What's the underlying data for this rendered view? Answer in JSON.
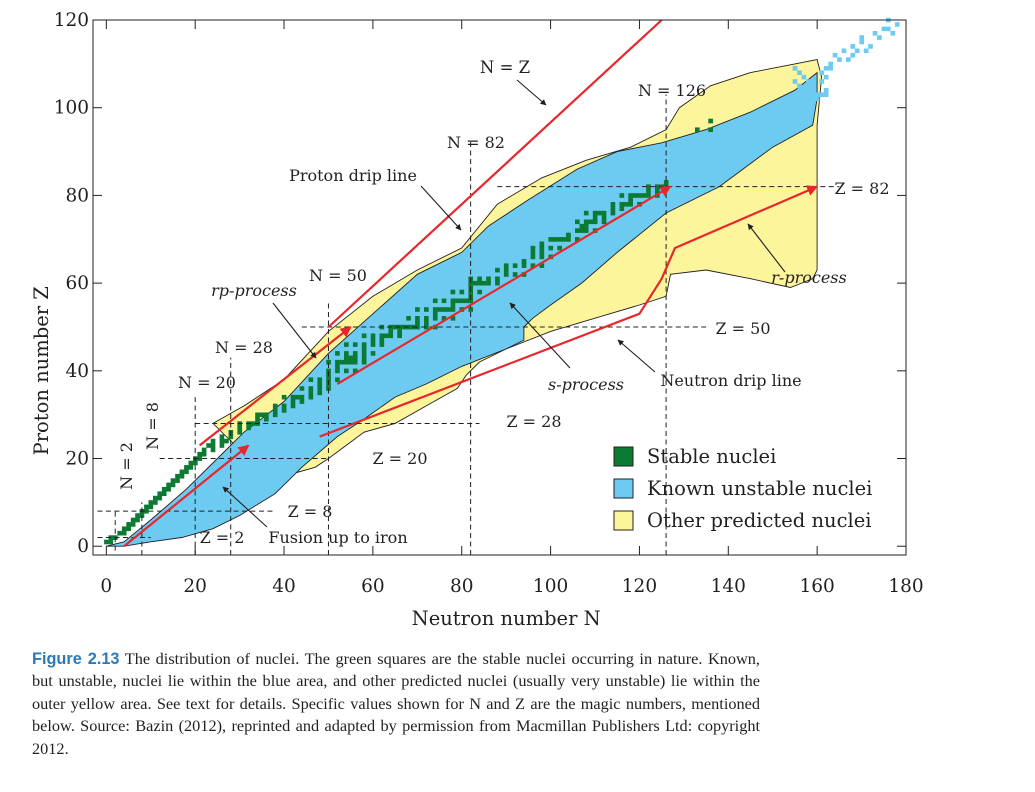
{
  "chart_data": {
    "type": "heatmap",
    "xlabel": "Neutron number N",
    "ylabel": "Proton number Z",
    "xlim": [
      -3,
      180
    ],
    "ylim": [
      -2,
      120
    ],
    "x_ticks": [
      "0",
      "20",
      "40",
      "60",
      "80",
      "100",
      "120",
      "140",
      "160",
      "180"
    ],
    "y_ticks": [
      "0",
      "20",
      "40",
      "60",
      "80",
      "100",
      "120"
    ],
    "grid": false,
    "legend_placement": "bottom-right",
    "legend": [
      "Stable nuclei",
      "Known unstable nuclei",
      "Other predicted nuclei"
    ],
    "colors": {
      "stable": "#0b7a32",
      "known": "#6dcbf2",
      "predicted": "#fdf59c",
      "arrow": "#e8262b"
    },
    "known_unstable_region": [
      [
        0,
        0
      ],
      [
        4,
        1
      ],
      [
        10,
        6
      ],
      [
        18,
        13
      ],
      [
        25,
        20
      ],
      [
        31,
        26
      ],
      [
        40,
        33
      ],
      [
        50,
        44
      ],
      [
        60,
        53
      ],
      [
        70,
        62
      ],
      [
        80,
        67
      ],
      [
        86,
        73
      ],
      [
        95,
        79
      ],
      [
        106,
        86
      ],
      [
        115,
        90
      ],
      [
        125,
        92
      ],
      [
        135,
        95
      ],
      [
        145,
        99
      ],
      [
        155,
        104
      ],
      [
        160,
        108
      ],
      [
        160,
        102
      ],
      [
        159,
        96
      ],
      [
        150,
        91
      ],
      [
        138,
        82
      ],
      [
        126,
        76
      ],
      [
        115,
        67
      ],
      [
        107,
        60
      ],
      [
        100,
        55
      ],
      [
        96,
        52
      ],
      [
        94,
        50
      ],
      [
        94,
        47
      ],
      [
        90,
        45
      ],
      [
        80,
        41
      ],
      [
        72,
        37
      ],
      [
        65,
        34
      ],
      [
        58,
        29
      ],
      [
        52,
        25
      ],
      [
        44,
        18
      ],
      [
        38,
        12
      ],
      [
        30,
        7
      ],
      [
        24,
        4
      ],
      [
        17,
        2
      ],
      [
        10,
        1
      ],
      [
        4,
        0
      ]
    ],
    "predicted_region": [
      [
        24,
        28
      ],
      [
        31,
        32
      ],
      [
        40,
        38
      ],
      [
        50,
        49
      ],
      [
        60,
        57
      ],
      [
        70,
        63
      ],
      [
        80,
        68
      ],
      [
        88,
        78
      ],
      [
        98,
        84
      ],
      [
        108,
        88
      ],
      [
        118,
        91
      ],
      [
        126,
        95
      ],
      [
        129,
        100
      ],
      [
        136,
        105
      ],
      [
        145,
        108
      ],
      [
        155,
        110
      ],
      [
        160,
        111
      ],
      [
        161,
        107
      ],
      [
        160,
        96
      ],
      [
        160,
        80
      ],
      [
        160,
        63
      ],
      [
        159,
        61
      ],
      [
        154,
        59
      ],
      [
        145,
        61
      ],
      [
        135,
        63
      ],
      [
        127,
        62
      ],
      [
        126,
        57
      ],
      [
        120,
        55
      ],
      [
        110,
        52
      ],
      [
        100,
        49
      ],
      [
        90,
        45
      ],
      [
        84,
        42
      ],
      [
        81,
        39
      ],
      [
        79,
        36
      ],
      [
        72,
        32
      ],
      [
        65,
        28
      ],
      [
        58,
        26
      ],
      [
        54,
        23
      ],
      [
        50,
        20
      ],
      [
        47,
        18
      ],
      [
        40,
        16
      ],
      [
        34,
        18
      ],
      [
        30,
        22
      ]
    ],
    "stable_nuclei": [
      [
        0,
        1
      ],
      [
        1,
        1
      ],
      [
        1,
        2
      ],
      [
        2,
        2
      ],
      [
        3,
        3
      ],
      [
        4,
        3
      ],
      [
        4,
        4
      ],
      [
        5,
        4
      ],
      [
        5,
        5
      ],
      [
        6,
        5
      ],
      [
        6,
        6
      ],
      [
        7,
        6
      ],
      [
        7,
        7
      ],
      [
        8,
        7
      ],
      [
        8,
        8
      ],
      [
        9,
        8
      ],
      [
        9,
        9
      ],
      [
        10,
        9
      ],
      [
        10,
        10
      ],
      [
        11,
        10
      ],
      [
        11,
        11
      ],
      [
        12,
        11
      ],
      [
        12,
        12
      ],
      [
        13,
        12
      ],
      [
        13,
        13
      ],
      [
        14,
        13
      ],
      [
        14,
        14
      ],
      [
        15,
        14
      ],
      [
        15,
        15
      ],
      [
        16,
        15
      ],
      [
        16,
        16
      ],
      [
        17,
        16
      ],
      [
        17,
        17
      ],
      [
        18,
        17
      ],
      [
        18,
        18
      ],
      [
        19,
        18
      ],
      [
        19,
        19
      ],
      [
        20,
        19
      ],
      [
        20,
        20
      ],
      [
        21,
        20
      ],
      [
        21,
        21
      ],
      [
        22,
        21
      ],
      [
        22,
        22
      ],
      [
        24,
        22
      ],
      [
        23,
        23
      ],
      [
        24,
        23
      ],
      [
        26,
        23
      ],
      [
        24,
        24
      ],
      [
        26,
        24
      ],
      [
        27,
        24
      ],
      [
        26,
        25
      ],
      [
        28,
        25
      ],
      [
        28,
        26
      ],
      [
        30,
        26
      ],
      [
        30,
        27
      ],
      [
        32,
        27
      ],
      [
        30,
        28
      ],
      [
        32,
        28
      ],
      [
        33,
        28
      ],
      [
        34,
        28
      ],
      [
        34,
        29
      ],
      [
        36,
        29
      ],
      [
        34,
        30
      ],
      [
        35,
        30
      ],
      [
        36,
        30
      ],
      [
        38,
        30
      ],
      [
        38,
        31
      ],
      [
        40,
        31
      ],
      [
        38,
        32
      ],
      [
        40,
        32
      ],
      [
        42,
        32
      ],
      [
        42,
        33
      ],
      [
        44,
        33
      ],
      [
        40,
        34
      ],
      [
        42,
        34
      ],
      [
        43,
        34
      ],
      [
        44,
        34
      ],
      [
        46,
        34
      ],
      [
        46,
        35
      ],
      [
        48,
        35
      ],
      [
        44,
        36
      ],
      [
        46,
        36
      ],
      [
        48,
        36
      ],
      [
        50,
        36
      ],
      [
        48,
        37
      ],
      [
        50,
        37
      ],
      [
        46,
        38
      ],
      [
        48,
        38
      ],
      [
        50,
        38
      ],
      [
        52,
        38
      ],
      [
        50,
        39
      ],
      [
        50,
        40
      ],
      [
        52,
        40
      ],
      [
        54,
        40
      ],
      [
        56,
        40
      ],
      [
        52,
        41
      ],
      [
        50,
        42
      ],
      [
        52,
        42
      ],
      [
        53,
        42
      ],
      [
        54,
        42
      ],
      [
        55,
        42
      ],
      [
        56,
        42
      ],
      [
        58,
        42
      ],
      [
        54,
        43
      ],
      [
        55,
        43
      ],
      [
        56,
        43
      ],
      [
        58,
        43
      ],
      [
        52,
        44
      ],
      [
        54,
        44
      ],
      [
        56,
        44
      ],
      [
        58,
        44
      ],
      [
        60,
        44
      ],
      [
        58,
        45
      ],
      [
        54,
        46
      ],
      [
        56,
        46
      ],
      [
        58,
        46
      ],
      [
        60,
        46
      ],
      [
        62,
        46
      ],
      [
        60,
        47
      ],
      [
        62,
        47
      ],
      [
        58,
        48
      ],
      [
        60,
        48
      ],
      [
        62,
        48
      ],
      [
        63,
        48
      ],
      [
        64,
        48
      ],
      [
        66,
        48
      ],
      [
        64,
        49
      ],
      [
        66,
        49
      ],
      [
        62,
        50
      ],
      [
        64,
        50
      ],
      [
        65,
        50
      ],
      [
        66,
        50
      ],
      [
        67,
        50
      ],
      [
        68,
        50
      ],
      [
        69,
        50
      ],
      [
        70,
        50
      ],
      [
        72,
        50
      ],
      [
        74,
        50
      ],
      [
        70,
        51
      ],
      [
        72,
        51
      ],
      [
        68,
        52
      ],
      [
        70,
        52
      ],
      [
        72,
        52
      ],
      [
        74,
        52
      ],
      [
        76,
        52
      ],
      [
        78,
        52
      ],
      [
        74,
        53
      ],
      [
        70,
        54
      ],
      [
        72,
        54
      ],
      [
        74,
        54
      ],
      [
        75,
        54
      ],
      [
        76,
        54
      ],
      [
        77,
        54
      ],
      [
        78,
        54
      ],
      [
        80,
        54
      ],
      [
        82,
        54
      ],
      [
        78,
        55
      ],
      [
        74,
        56
      ],
      [
        76,
        56
      ],
      [
        78,
        56
      ],
      [
        79,
        56
      ],
      [
        80,
        56
      ],
      [
        81,
        56
      ],
      [
        82,
        56
      ],
      [
        82,
        57
      ],
      [
        78,
        58
      ],
      [
        80,
        58
      ],
      [
        82,
        58
      ],
      [
        84,
        58
      ],
      [
        82,
        59
      ],
      [
        82,
        60
      ],
      [
        83,
        60
      ],
      [
        84,
        60
      ],
      [
        85,
        60
      ],
      [
        86,
        60
      ],
      [
        88,
        60
      ],
      [
        82,
        61
      ],
      [
        84,
        61
      ],
      [
        86,
        61
      ],
      [
        88,
        61
      ],
      [
        90,
        62
      ],
      [
        92,
        62
      ],
      [
        94,
        62
      ],
      [
        88,
        63
      ],
      [
        90,
        63
      ],
      [
        90,
        64
      ],
      [
        92,
        64
      ],
      [
        94,
        64
      ],
      [
        96,
        64
      ],
      [
        98,
        64
      ],
      [
        94,
        65
      ],
      [
        96,
        66
      ],
      [
        98,
        66
      ],
      [
        100,
        66
      ],
      [
        96,
        67
      ],
      [
        98,
        67
      ],
      [
        96,
        68
      ],
      [
        98,
        68
      ],
      [
        100,
        68
      ],
      [
        102,
        68
      ],
      [
        98,
        69
      ],
      [
        100,
        70
      ],
      [
        101,
        70
      ],
      [
        102,
        70
      ],
      [
        103,
        70
      ],
      [
        104,
        70
      ],
      [
        106,
        70
      ],
      [
        104,
        71
      ],
      [
        106,
        72
      ],
      [
        107,
        72
      ],
      [
        108,
        72
      ],
      [
        110,
        72
      ],
      [
        107,
        73
      ],
      [
        108,
        73
      ],
      [
        106,
        74
      ],
      [
        108,
        74
      ],
      [
        109,
        74
      ],
      [
        110,
        74
      ],
      [
        112,
        74
      ],
      [
        110,
        75
      ],
      [
        112,
        75
      ],
      [
        108,
        76
      ],
      [
        110,
        76
      ],
      [
        111,
        76
      ],
      [
        112,
        76
      ],
      [
        114,
        76
      ],
      [
        114,
        77
      ],
      [
        116,
        77
      ],
      [
        114,
        78
      ],
      [
        116,
        78
      ],
      [
        117,
        78
      ],
      [
        118,
        78
      ],
      [
        120,
        78
      ],
      [
        118,
        79
      ],
      [
        116,
        80
      ],
      [
        118,
        80
      ],
      [
        119,
        80
      ],
      [
        120,
        80
      ],
      [
        121,
        80
      ],
      [
        122,
        80
      ],
      [
        124,
        80
      ],
      [
        122,
        81
      ],
      [
        124,
        81
      ],
      [
        122,
        82
      ],
      [
        124,
        82
      ],
      [
        125,
        82
      ],
      [
        126,
        82
      ],
      [
        126,
        83
      ],
      [
        133,
        95
      ],
      [
        136,
        95
      ],
      [
        136,
        97
      ]
    ],
    "known_heavy_fringe": [
      [
        159,
        105
      ],
      [
        159,
        104
      ],
      [
        158,
        106
      ],
      [
        158,
        103
      ],
      [
        157,
        107
      ],
      [
        157,
        104
      ],
      [
        156,
        108
      ],
      [
        156,
        105
      ],
      [
        155,
        109
      ],
      [
        155,
        106
      ],
      [
        161,
        106
      ],
      [
        162,
        107
      ],
      [
        161,
        108
      ],
      [
        162,
        109
      ],
      [
        163,
        110
      ],
      [
        165,
        111
      ],
      [
        164,
        112
      ],
      [
        163,
        109
      ],
      [
        166,
        113
      ],
      [
        167,
        111
      ],
      [
        168,
        112
      ],
      [
        169,
        113
      ],
      [
        168,
        114
      ],
      [
        170,
        115
      ],
      [
        171,
        113
      ],
      [
        170,
        116
      ],
      [
        172,
        114
      ],
      [
        174,
        116
      ],
      [
        173,
        117
      ],
      [
        175,
        118
      ],
      [
        176,
        118
      ],
      [
        177,
        117
      ],
      [
        176,
        120
      ],
      [
        178,
        119
      ],
      [
        160,
        102
      ],
      [
        160,
        103
      ],
      [
        161,
        103
      ],
      [
        162,
        104
      ],
      [
        162,
        103
      ]
    ],
    "magic_lines_N": [
      2,
      8,
      20,
      28,
      50,
      82,
      126
    ],
    "magic_lines_Z": [
      2,
      8,
      20,
      28,
      50,
      82
    ],
    "lines": [
      {
        "name": "N = Z",
        "points": [
          [
            50,
            50
          ],
          [
            125,
            120
          ]
        ]
      },
      {
        "name": "Fusion up to iron",
        "points": [
          [
            4,
            0
          ],
          [
            32,
            23
          ]
        ]
      },
      {
        "name": "rp-process",
        "points": [
          [
            21,
            23
          ],
          [
            55,
            50
          ]
        ]
      },
      {
        "name": "s-process",
        "points": [
          [
            52,
            37
          ],
          [
            127,
            82
          ]
        ]
      },
      {
        "name": "r-process",
        "points": [
          [
            48,
            25
          ],
          [
            120,
            53
          ],
          [
            125,
            61
          ],
          [
            128,
            68
          ],
          [
            160,
            82
          ]
        ]
      }
    ],
    "annotations": [
      "N = Z",
      "N = 126",
      "N = 82",
      "Proton drip line",
      "N = 50",
      "rp-process",
      "N = 28",
      "N = 20",
      "N = 8",
      "N = 2",
      "Z = 82",
      "r-process",
      "Z = 50",
      "Neutron drip line",
      "s-process",
      "Z = 28",
      "Z = 20",
      "Z = 8",
      "Z = 2",
      "Fusion up to iron"
    ]
  },
  "caption": {
    "label": "Figure 2.13",
    "text": "The distribution of nuclei. The green squares are the stable nuclei occurring in nature. Known, but unstable, nuclei lie within the blue area, and other predicted nuclei (usually very unstable) lie within the outer yellow area. See text for details. Specific values shown for N and Z are the magic numbers, mentioned below. Source: Bazin (2012), reprinted and adapted by permission from Macmillan Publishers Ltd: copyright 2012."
  }
}
